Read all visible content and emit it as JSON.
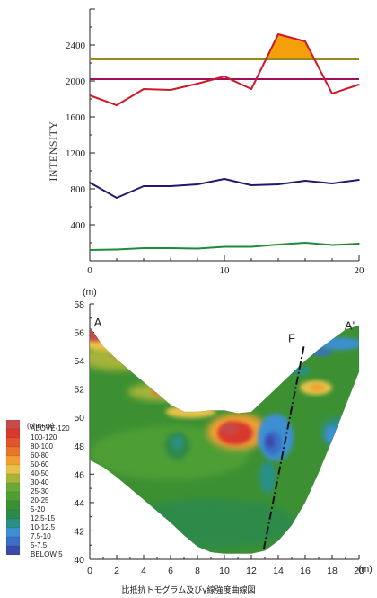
{
  "chart_data": [
    {
      "type": "line",
      "ylabel": "INTENSITY",
      "xlim": [
        0,
        20
      ],
      "ylim": [
        0,
        2800
      ],
      "x_ticks": [
        "0",
        "10",
        "20"
      ],
      "y_ticks": [
        "400",
        "800",
        "1200",
        "1600",
        "2000",
        "2400"
      ],
      "y_tick_values": [
        400,
        800,
        1200,
        1600,
        2000,
        2400
      ],
      "thresholds": [
        {
          "value": 2240,
          "color": "#9a8a1a"
        },
        {
          "value": 2020,
          "color": "#a0105a"
        }
      ],
      "series": [
        {
          "color": "#cc1a2a",
          "x": [
            0,
            2,
            4,
            6,
            8,
            10,
            12,
            14,
            16,
            18,
            20
          ],
          "y": [
            1840,
            1730,
            1910,
            1900,
            1970,
            2050,
            1910,
            2520,
            2440,
            1860,
            1960
          ]
        },
        {
          "color": "#1e1a6e",
          "x": [
            0,
            2,
            4,
            6,
            8,
            10,
            12,
            14,
            16,
            18,
            20
          ],
          "y": [
            870,
            700,
            830,
            830,
            850,
            910,
            840,
            850,
            890,
            860,
            900
          ]
        },
        {
          "color": "#1f8a3c",
          "x": [
            0,
            2,
            4,
            6,
            8,
            10,
            12,
            14,
            16,
            18,
            20
          ],
          "y": [
            120,
            125,
            140,
            140,
            135,
            155,
            155,
            180,
            200,
            175,
            190
          ]
        }
      ],
      "highlight_fill": "#f5a00a"
    },
    {
      "type": "heatmap",
      "x_unit": "(m)",
      "y_unit": "(m)",
      "xlim": [
        0,
        20
      ],
      "ylim": [
        40,
        58
      ],
      "x_ticks": [
        "0",
        "2",
        "4",
        "6",
        "8",
        "10",
        "12",
        "14",
        "16",
        "18",
        "20"
      ],
      "y_ticks": [
        "40",
        "42",
        "44",
        "46",
        "48",
        "50",
        "52",
        "54",
        "56",
        "58"
      ],
      "markers": [
        {
          "label": "A",
          "x": 0.6,
          "y": 56.4
        },
        {
          "label": "A'",
          "x": 19.3,
          "y": 56.2
        },
        {
          "label": "F",
          "x": 15.0,
          "y": 55.3
        }
      ],
      "fault_line": {
        "x": [
          15.9,
          12.9
        ],
        "y": [
          55.0,
          40.6
        ]
      },
      "legend": {
        "unit": "(ohm-m)",
        "items": [
          {
            "label": "ABOVE-120",
            "color": "#c84a4a"
          },
          {
            "label": "100-120",
            "color": "#d8382e"
          },
          {
            "label": "80-100",
            "color": "#e0552a"
          },
          {
            "label": "60-80",
            "color": "#e8762a"
          },
          {
            "label": "50-60",
            "color": "#f0a030"
          },
          {
            "label": "40-50",
            "color": "#e6c24a"
          },
          {
            "label": "30-40",
            "color": "#a6b43a"
          },
          {
            "label": "25-30",
            "color": "#6aa83a"
          },
          {
            "label": "20-25",
            "color": "#4e9e34"
          },
          {
            "label": "5-20",
            "color": "#3c9032"
          },
          {
            "label": "12.5-15",
            "color": "#2e8a4a"
          },
          {
            "label": "10-12.5",
            "color": "#2a8f86"
          },
          {
            "label": "7.5-10",
            "color": "#3c8fd2"
          },
          {
            "label": "5-7.5",
            "color": "#3a6ec8"
          },
          {
            "label": "BELOW 5",
            "color": "#3a4aa8"
          }
        ]
      },
      "caption": "比抵抗トモグラム及びγ線強度曲線図"
    }
  ]
}
